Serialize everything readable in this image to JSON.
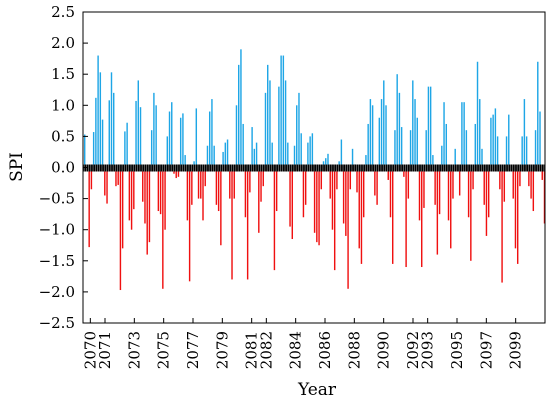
{
  "chart_data": {
    "type": "bar",
    "title": "",
    "xlabel": "Year",
    "ylabel": "SPI",
    "ylim": [
      -2.5,
      2.5
    ],
    "yticks": [
      2.5,
      2.0,
      1.5,
      1.0,
      0.5,
      0.0,
      -0.5,
      -1.0,
      -1.5,
      -2.0,
      -2.5
    ],
    "ytick_labels": [
      "2.5",
      "2.0",
      "1.5",
      "1.0",
      "0.5",
      "0.0",
      "−0.5",
      "−1.0",
      "−1.5",
      "−2.0",
      "−2.5"
    ],
    "xlim": [
      2069.5,
      2101
    ],
    "xticks": [
      2070,
      2071,
      2073,
      2075,
      2077,
      2079,
      2081,
      2082,
      2084,
      2086,
      2088,
      2090,
      2092,
      2093,
      2095,
      2097,
      2099
    ],
    "xtick_labels": [
      "2070",
      "2071",
      "2073",
      "2075",
      "2077",
      "2079",
      "2081",
      "2082",
      "2084",
      "2086",
      "2088",
      "2090",
      "2092",
      "2093",
      "2095",
      "2097",
      "2099"
    ],
    "colors": {
      "positive": "#1ea6e6",
      "negative": "#f01010",
      "baseline": "#000000"
    },
    "grid": false,
    "legend": "none",
    "values": [
      0.53,
      0.0,
      -1.28,
      -0.35,
      0.57,
      1.12,
      1.8,
      1.53,
      0.77,
      -0.45,
      -0.58,
      1.08,
      1.53,
      1.2,
      -0.3,
      -0.28,
      -1.97,
      -1.3,
      0.58,
      0.72,
      -0.85,
      -1.0,
      -0.67,
      1.07,
      1.4,
      0.97,
      -0.55,
      -0.9,
      -1.4,
      -1.2,
      0.6,
      1.2,
      1.0,
      -0.7,
      -0.75,
      -1.95,
      -1.0,
      0.5,
      0.9,
      1.05,
      -0.1,
      -0.17,
      -0.15,
      0.8,
      0.87,
      0.2,
      -0.85,
      -1.83,
      -0.6,
      0.1,
      0.95,
      -0.5,
      -0.5,
      -0.85,
      -0.3,
      0.35,
      0.9,
      1.1,
      0.35,
      -0.6,
      -0.7,
      -1.25,
      0.25,
      0.4,
      0.45,
      -0.5,
      -1.8,
      -0.5,
      1.0,
      1.65,
      1.9,
      0.7,
      -0.8,
      -1.8,
      -0.4,
      0.65,
      0.3,
      0.4,
      -1.05,
      -0.55,
      -0.3,
      1.2,
      1.65,
      1.4,
      0.4,
      -1.65,
      -0.7,
      1.3,
      1.8,
      1.8,
      1.4,
      0.4,
      -0.95,
      -1.15,
      0.35,
      1.0,
      1.2,
      0.55,
      -0.8,
      -0.6,
      0.4,
      0.5,
      0.55,
      -1.05,
      -1.2,
      -1.25,
      -0.35,
      0.1,
      0.15,
      0.22,
      -0.5,
      -1.0,
      -1.65,
      -0.35,
      0.1,
      0.45,
      -0.9,
      -1.1,
      -1.95,
      -0.35,
      0.3,
      0.05,
      -0.4,
      -1.3,
      -1.55,
      -0.8,
      0.2,
      0.7,
      1.1,
      1.0,
      -0.45,
      -0.6,
      0.8,
      1.1,
      1.4,
      1.0,
      -0.2,
      -0.8,
      -1.55,
      0.6,
      1.5,
      1.2,
      0.65,
      -0.15,
      -1.6,
      -0.5,
      0.6,
      1.4,
      1.1,
      0.8,
      -0.85,
      -1.6,
      -0.65,
      0.6,
      1.3,
      1.3,
      0.2,
      -0.6,
      -1.4,
      -0.75,
      0.35,
      1.05,
      0.7,
      -0.85,
      -1.3,
      -0.5,
      0.3,
      0.0,
      -0.45,
      1.05,
      1.05,
      0.6,
      -0.8,
      -1.5,
      -0.35,
      0.7,
      1.7,
      1.1,
      0.3,
      -0.6,
      -1.1,
      -0.8,
      0.8,
      0.85,
      0.95,
      0.5,
      -0.35,
      -1.85,
      -0.55,
      0.5,
      0.85,
      0.0,
      -0.5,
      -1.3,
      -1.55,
      -0.3,
      0.5,
      1.1,
      0.5,
      -0.3,
      -0.5,
      -0.7,
      0.6,
      1.7,
      0.9,
      -0.2,
      -0.9
    ]
  }
}
